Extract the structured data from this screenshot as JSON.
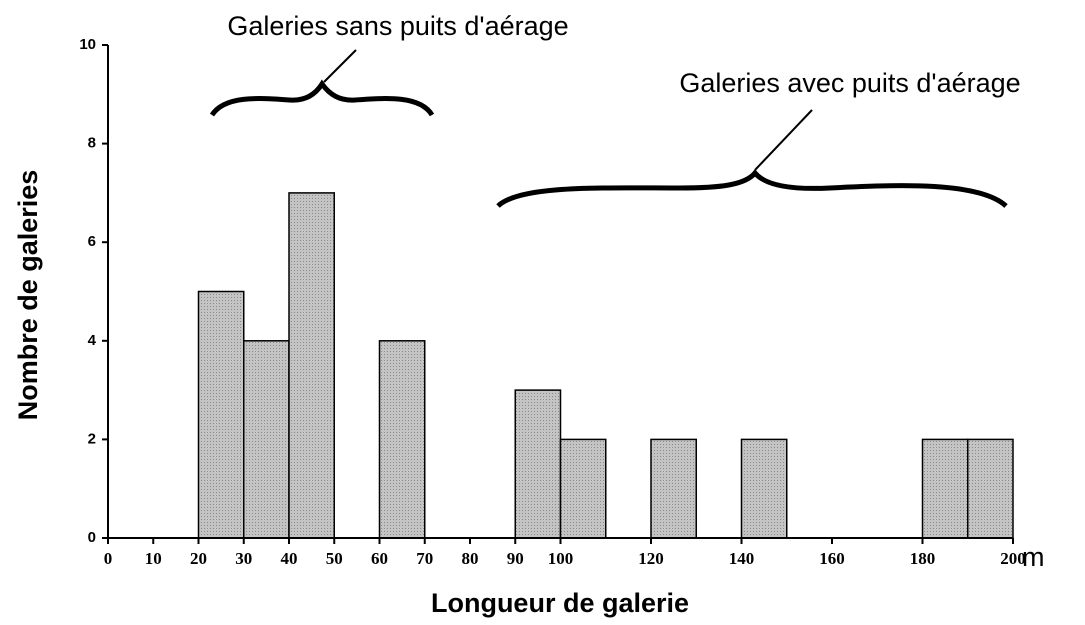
{
  "chart_data": {
    "type": "histogram",
    "annotations": [
      "Galeries sans puits d'aérage",
      "Galeries avec puits d'aérage"
    ],
    "x_label": "Longueur de galerie",
    "x_unit": "m",
    "y_label": "Nombre de galeries",
    "bins": [
      0,
      10,
      20,
      30,
      40,
      50,
      60,
      70,
      80,
      90,
      100,
      110,
      120,
      130,
      140,
      150,
      160,
      170,
      180,
      190,
      200
    ],
    "counts": [
      0,
      0,
      5,
      4,
      7,
      0,
      4,
      0,
      0,
      3,
      2,
      0,
      2,
      0,
      2,
      0,
      0,
      0,
      2,
      2
    ],
    "color": "#bdbdbd",
    "xlim": [
      0,
      200
    ],
    "xticks": [
      0,
      10,
      20,
      30,
      40,
      50,
      60,
      70,
      80,
      90,
      100,
      120,
      140,
      160,
      180,
      200
    ],
    "ylim": [
      0,
      10
    ],
    "yticks": [
      0,
      2,
      4,
      6,
      8,
      10
    ],
    "grid": false
  }
}
